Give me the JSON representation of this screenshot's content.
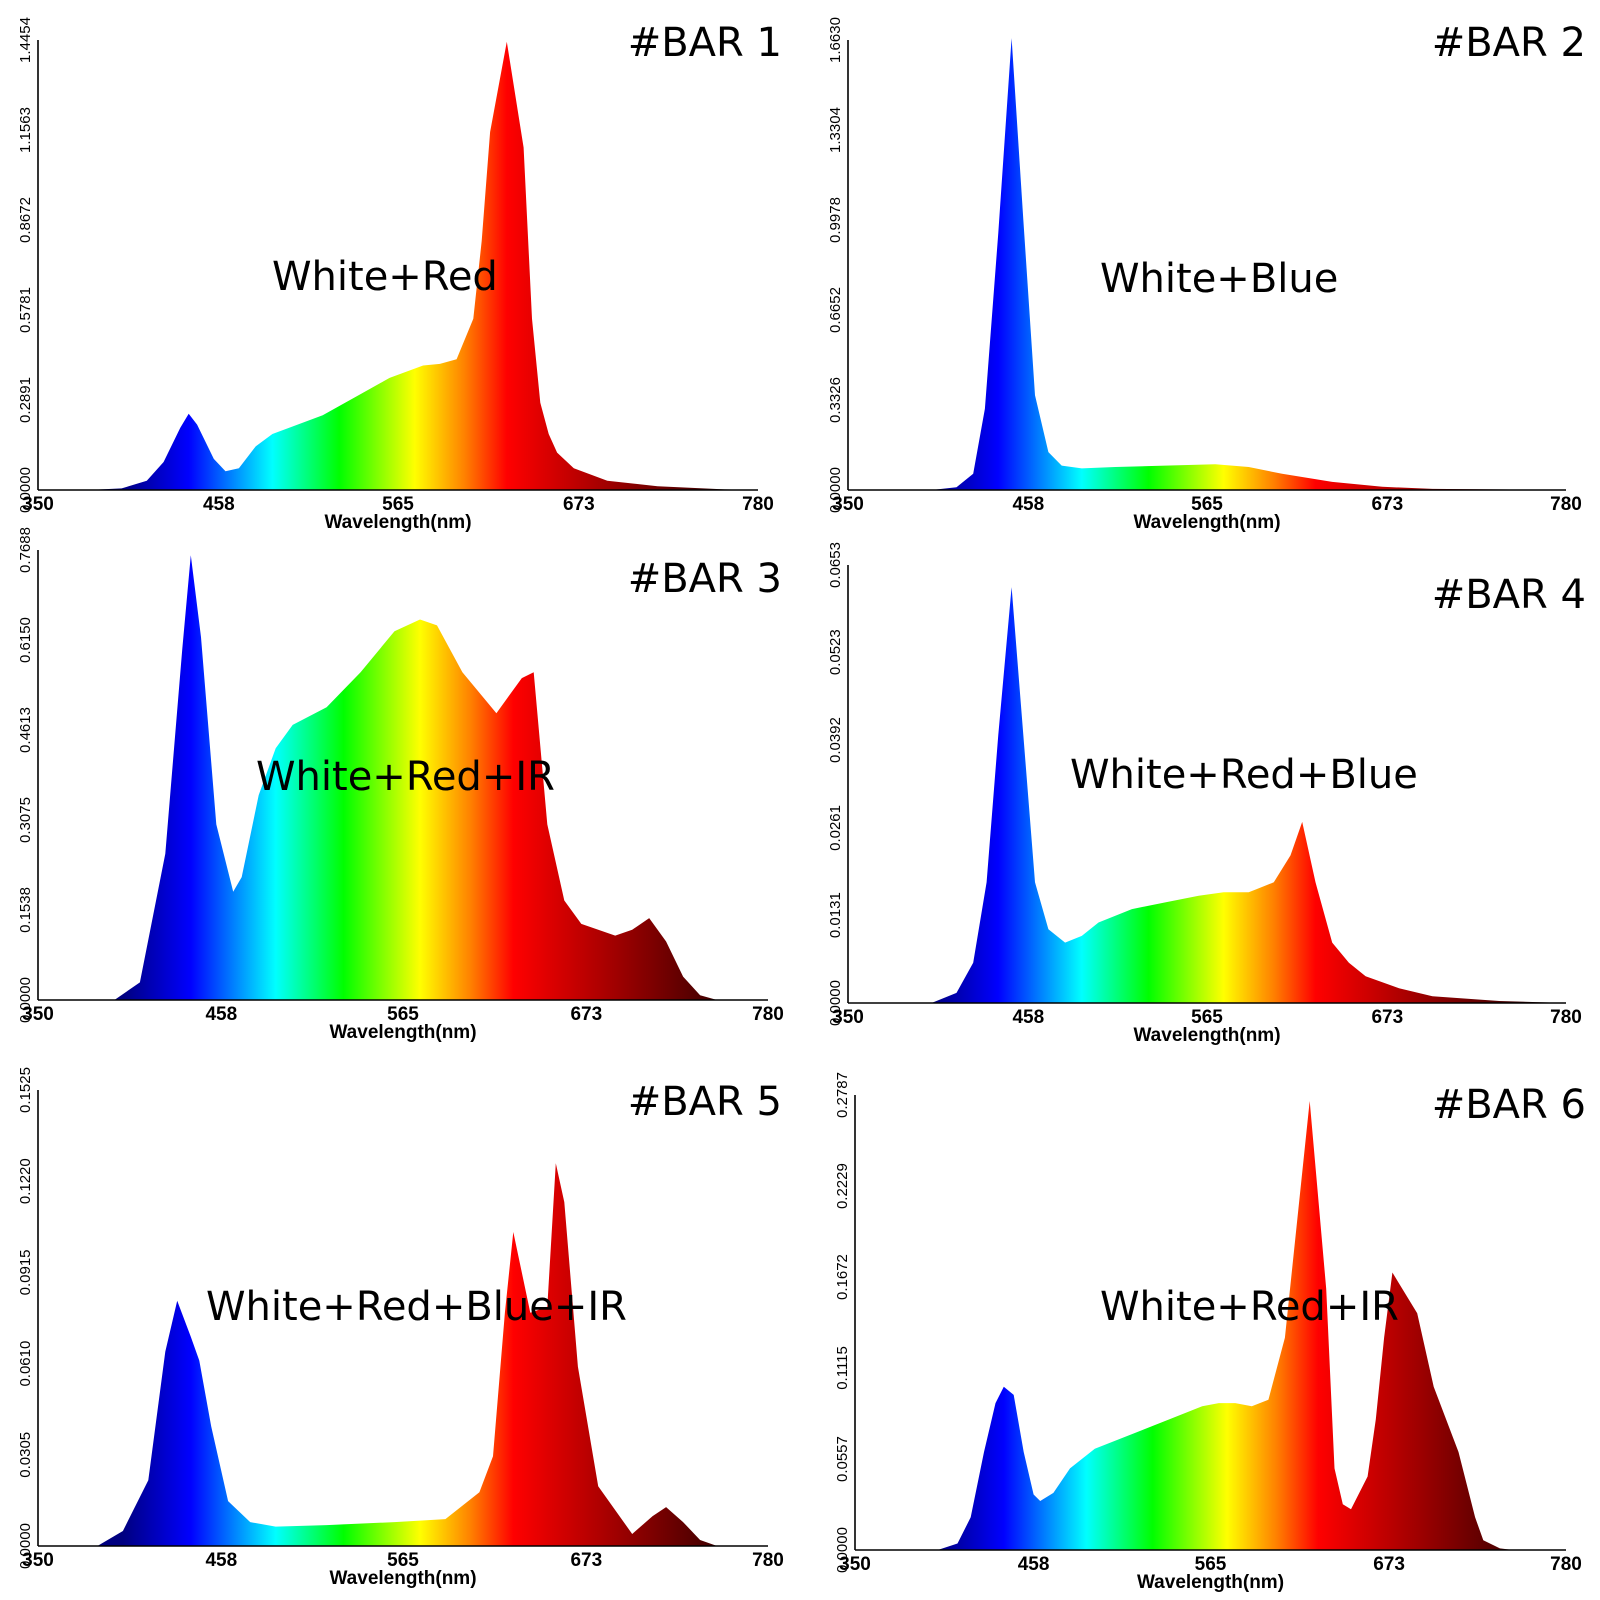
{
  "colors": {
    "axis": "#000000",
    "spectrum": [
      "#000080",
      "#0000ff",
      "#00ffff",
      "#00ff00",
      "#ffff00",
      "#ff8000",
      "#ff0000",
      "#b00000",
      "#300000"
    ]
  },
  "chart_data": [
    {
      "type": "area",
      "title": "#BAR 1",
      "label": "White+Red",
      "xlabel": "Wavelength(nm)",
      "xlim": [
        350,
        780
      ],
      "xticks": [
        "350",
        "458",
        "565",
        "673",
        "780"
      ],
      "ylim": [
        0,
        1.4454
      ],
      "yticks": [
        "0.0000",
        "0.2891",
        "0.5781",
        "0.8672",
        "1.1563",
        "1.4454"
      ],
      "x": [
        350,
        380,
        400,
        415,
        425,
        435,
        440,
        445,
        455,
        462,
        470,
        480,
        490,
        500,
        520,
        540,
        560,
        580,
        590,
        600,
        610,
        615,
        620,
        630,
        640,
        645,
        650,
        655,
        660,
        670,
        690,
        720,
        760,
        780
      ],
      "y": [
        0,
        0,
        0.005,
        0.03,
        0.09,
        0.2,
        0.245,
        0.21,
        0.1,
        0.06,
        0.07,
        0.14,
        0.18,
        0.2,
        0.24,
        0.3,
        0.36,
        0.4,
        0.405,
        0.42,
        0.55,
        0.8,
        1.15,
        1.44,
        1.1,
        0.55,
        0.28,
        0.18,
        0.12,
        0.07,
        0.03,
        0.012,
        0.002,
        0
      ]
    },
    {
      "type": "area",
      "title": "#BAR 2",
      "label": "White+Blue",
      "xlabel": "Wavelength(nm)",
      "xlim": [
        350,
        780
      ],
      "xticks": [
        "350",
        "458",
        "565",
        "673",
        "780"
      ],
      "ylim": [
        0,
        1.663
      ],
      "yticks": [
        "0.0000",
        "0.3326",
        "0.6652",
        "0.9978",
        "1.3304",
        "1.6630"
      ],
      "x": [
        350,
        400,
        415,
        425,
        432,
        440,
        448,
        455,
        462,
        470,
        478,
        490,
        510,
        540,
        570,
        590,
        610,
        640,
        670,
        700,
        780
      ],
      "y": [
        0,
        0,
        0.01,
        0.06,
        0.3,
        0.95,
        1.67,
        1.0,
        0.35,
        0.14,
        0.09,
        0.08,
        0.085,
        0.09,
        0.095,
        0.085,
        0.06,
        0.03,
        0.012,
        0.004,
        0
      ]
    },
    {
      "type": "area",
      "title": "#BAR 3",
      "label": "White+Red+IR",
      "xlabel": "Wavelength(nm)",
      "xlim": [
        350,
        780
      ],
      "xticks": [
        "350",
        "458",
        "565",
        "673",
        "780"
      ],
      "ylim": [
        0,
        0.7688
      ],
      "yticks": [
        "0.0000",
        "0.1538",
        "0.3075",
        "0.4613",
        "0.6150",
        "0.7688"
      ],
      "x": [
        350,
        395,
        410,
        425,
        435,
        440,
        446,
        455,
        465,
        470,
        480,
        490,
        500,
        520,
        540,
        560,
        575,
        585,
        600,
        620,
        635,
        642,
        650,
        660,
        670,
        690,
        700,
        710,
        720,
        730,
        740,
        750,
        780
      ],
      "y": [
        0,
        0,
        0.03,
        0.25,
        0.6,
        0.76,
        0.62,
        0.3,
        0.185,
        0.21,
        0.35,
        0.43,
        0.47,
        0.5,
        0.56,
        0.63,
        0.65,
        0.64,
        0.56,
        0.49,
        0.55,
        0.56,
        0.3,
        0.17,
        0.13,
        0.11,
        0.12,
        0.14,
        0.1,
        0.04,
        0.008,
        0,
        0
      ]
    },
    {
      "type": "area",
      "title": "#BAR 4",
      "label": "White+Red+Blue",
      "xlabel": "Wavelength(nm)",
      "xlim": [
        350,
        780
      ],
      "xticks": [
        "350",
        "458",
        "565",
        "673",
        "780"
      ],
      "ylim": [
        0,
        0.0653
      ],
      "yticks": [
        "0.0000",
        "0.0131",
        "0.0261",
        "0.0392",
        "0.0523",
        "0.0653"
      ],
      "x": [
        350,
        400,
        415,
        425,
        433,
        440,
        448,
        455,
        462,
        470,
        480,
        490,
        500,
        520,
        540,
        560,
        575,
        590,
        605,
        615,
        622,
        630,
        640,
        650,
        660,
        680,
        700,
        740,
        780
      ],
      "y": [
        0,
        0,
        0.0015,
        0.006,
        0.018,
        0.04,
        0.062,
        0.04,
        0.018,
        0.011,
        0.009,
        0.01,
        0.012,
        0.014,
        0.015,
        0.016,
        0.0165,
        0.0165,
        0.018,
        0.022,
        0.027,
        0.018,
        0.009,
        0.006,
        0.004,
        0.0022,
        0.001,
        0.0003,
        0
      ]
    },
    {
      "type": "area",
      "title": "#BAR 5",
      "label": "White+Red+Blue+IR",
      "xlabel": "Wavelength(nm)",
      "xlim": [
        350,
        780
      ],
      "xticks": [
        "350",
        "458",
        "565",
        "673",
        "780"
      ],
      "ylim": [
        0,
        0.1525
      ],
      "yticks": [
        "0.0000",
        "0.0305",
        "0.0610",
        "0.0915",
        "0.1220",
        "0.1525"
      ],
      "x": [
        350,
        385,
        400,
        415,
        425,
        432,
        440,
        445,
        452,
        462,
        475,
        490,
        520,
        560,
        590,
        610,
        618,
        625,
        630,
        640,
        650,
        655,
        660,
        668,
        680,
        700,
        712,
        720,
        730,
        740,
        750,
        780
      ],
      "y": [
        0,
        0,
        0.005,
        0.022,
        0.065,
        0.082,
        0.07,
        0.062,
        0.04,
        0.015,
        0.008,
        0.0065,
        0.007,
        0.008,
        0.009,
        0.018,
        0.03,
        0.078,
        0.105,
        0.078,
        0.08,
        0.128,
        0.115,
        0.06,
        0.02,
        0.004,
        0.01,
        0.013,
        0.008,
        0.002,
        0,
        0
      ]
    },
    {
      "type": "area",
      "title": "#BAR 6",
      "label": "White+Red+IR",
      "xlabel": "Wavelength(nm)",
      "xlim": [
        350,
        780
      ],
      "xticks": [
        "350",
        "458",
        "565",
        "673",
        "780"
      ],
      "ylim": [
        0,
        0.2787
      ],
      "yticks": [
        "0.0000",
        "0.0557",
        "0.1115",
        "0.1672",
        "0.2229",
        "0.2787"
      ],
      "x": [
        350,
        400,
        412,
        420,
        428,
        435,
        440,
        446,
        452,
        458,
        462,
        470,
        480,
        495,
        520,
        540,
        560,
        570,
        580,
        590,
        600,
        610,
        625,
        635,
        640,
        645,
        650,
        660,
        665,
        670,
        675,
        690,
        700,
        715,
        725,
        730,
        740,
        748,
        755,
        780
      ],
      "y": [
        0,
        0,
        0.004,
        0.02,
        0.06,
        0.09,
        0.1,
        0.095,
        0.06,
        0.034,
        0.03,
        0.035,
        0.05,
        0.062,
        0.072,
        0.08,
        0.088,
        0.09,
        0.09,
        0.088,
        0.092,
        0.13,
        0.275,
        0.16,
        0.05,
        0.028,
        0.025,
        0.045,
        0.08,
        0.13,
        0.17,
        0.145,
        0.1,
        0.06,
        0.02,
        0.006,
        0.001,
        0,
        0,
        0
      ]
    }
  ]
}
